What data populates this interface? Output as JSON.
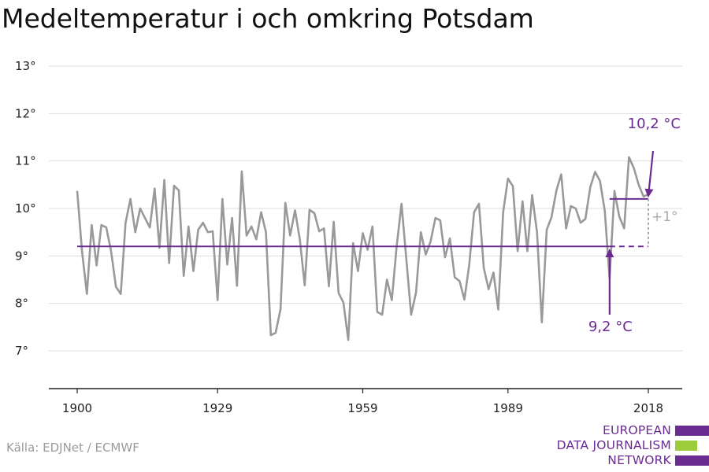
{
  "title": "Medeltemperatur i och omkring Potsdam",
  "source": "Källa: EDJNet / ECMWF",
  "logo": {
    "lines": [
      "EUROPEAN",
      "DATA JOURNALISM",
      "NETWORK"
    ],
    "colors": [
      "#6b2c91",
      "#9ccc3c",
      "#6b2c91"
    ]
  },
  "colors": {
    "series": "#999999",
    "mean": "#6b2c91",
    "diff": "#aaaaaa",
    "grid": "#dddddd",
    "axis": "#222222"
  },
  "chart_data": {
    "type": "line",
    "title": "Medeltemperatur i och omkring Potsdam",
    "xlabel": "",
    "ylabel": "",
    "xlim": [
      1900,
      2018
    ],
    "ylim": [
      6,
      13
    ],
    "grid": true,
    "x_ticks": [
      1900,
      1929,
      1959,
      1989,
      2018
    ],
    "y_ticks": [
      {
        "value": 7,
        "label": "7°"
      },
      {
        "value": 8,
        "label": "8°"
      },
      {
        "value": 9,
        "label": "9°"
      },
      {
        "value": 10,
        "label": "10°"
      },
      {
        "value": 11,
        "label": "11°"
      },
      {
        "value": 12,
        "label": "12°"
      },
      {
        "value": 13,
        "label": "13°"
      }
    ],
    "series": [
      {
        "x_start": 1900,
        "values": [
          10.37,
          9.1,
          8.2,
          9.65,
          8.8,
          9.65,
          9.6,
          9.1,
          8.35,
          8.2,
          9.7,
          10.2,
          9.5,
          10.0,
          9.8,
          9.6,
          10.42,
          9.17,
          10.6,
          8.85,
          10.48,
          10.38,
          8.58,
          9.62,
          8.68,
          9.55,
          9.7,
          9.5,
          9.52,
          8.07,
          10.2,
          8.82,
          9.8,
          8.37,
          10.78,
          9.43,
          9.62,
          9.35,
          9.92,
          9.5,
          7.33,
          7.38,
          7.88,
          10.12,
          9.43,
          9.96,
          9.35,
          8.38,
          9.97,
          9.9,
          9.52,
          9.58,
          8.36,
          9.72,
          8.22,
          8.02,
          7.23,
          9.27,
          8.68,
          9.48,
          9.13,
          9.62,
          7.82,
          7.76,
          8.5,
          8.07,
          9.2,
          10.1,
          8.93,
          7.76,
          8.23,
          9.5,
          9.03,
          9.3,
          9.8,
          9.75,
          8.97,
          9.37,
          8.55,
          8.47,
          8.08,
          8.82,
          9.92,
          10.1,
          8.75,
          8.3,
          8.65,
          7.87,
          9.92,
          10.63,
          10.47,
          9.1,
          10.15,
          9.1,
          10.28,
          9.5,
          7.6,
          9.55,
          9.82,
          10.38,
          10.72,
          9.58,
          10.05,
          10.0,
          9.7,
          9.78,
          10.45,
          10.77,
          10.58,
          9.95,
          8.52,
          10.37,
          9.83,
          9.58,
          11.08,
          10.85,
          10.5,
          10.25,
          10.3
        ]
      }
    ],
    "reference_lines": [
      {
        "value": 9.2,
        "x_from": 1900,
        "x_to": 2010,
        "style": "solid"
      },
      {
        "value": 9.2,
        "x_from": 2010,
        "x_to": 2018,
        "style": "dashed"
      },
      {
        "value": 10.2,
        "x_from": 2010,
        "x_to": 2018,
        "style": "solid"
      }
    ],
    "annotations": [
      {
        "text": "10,2 °C",
        "x": 2018,
        "y": 10.2
      },
      {
        "text": "9,2 °C",
        "x": 2010,
        "y": 9.2
      },
      {
        "text": "+1°",
        "x": 2018,
        "y": 9.7
      }
    ]
  }
}
